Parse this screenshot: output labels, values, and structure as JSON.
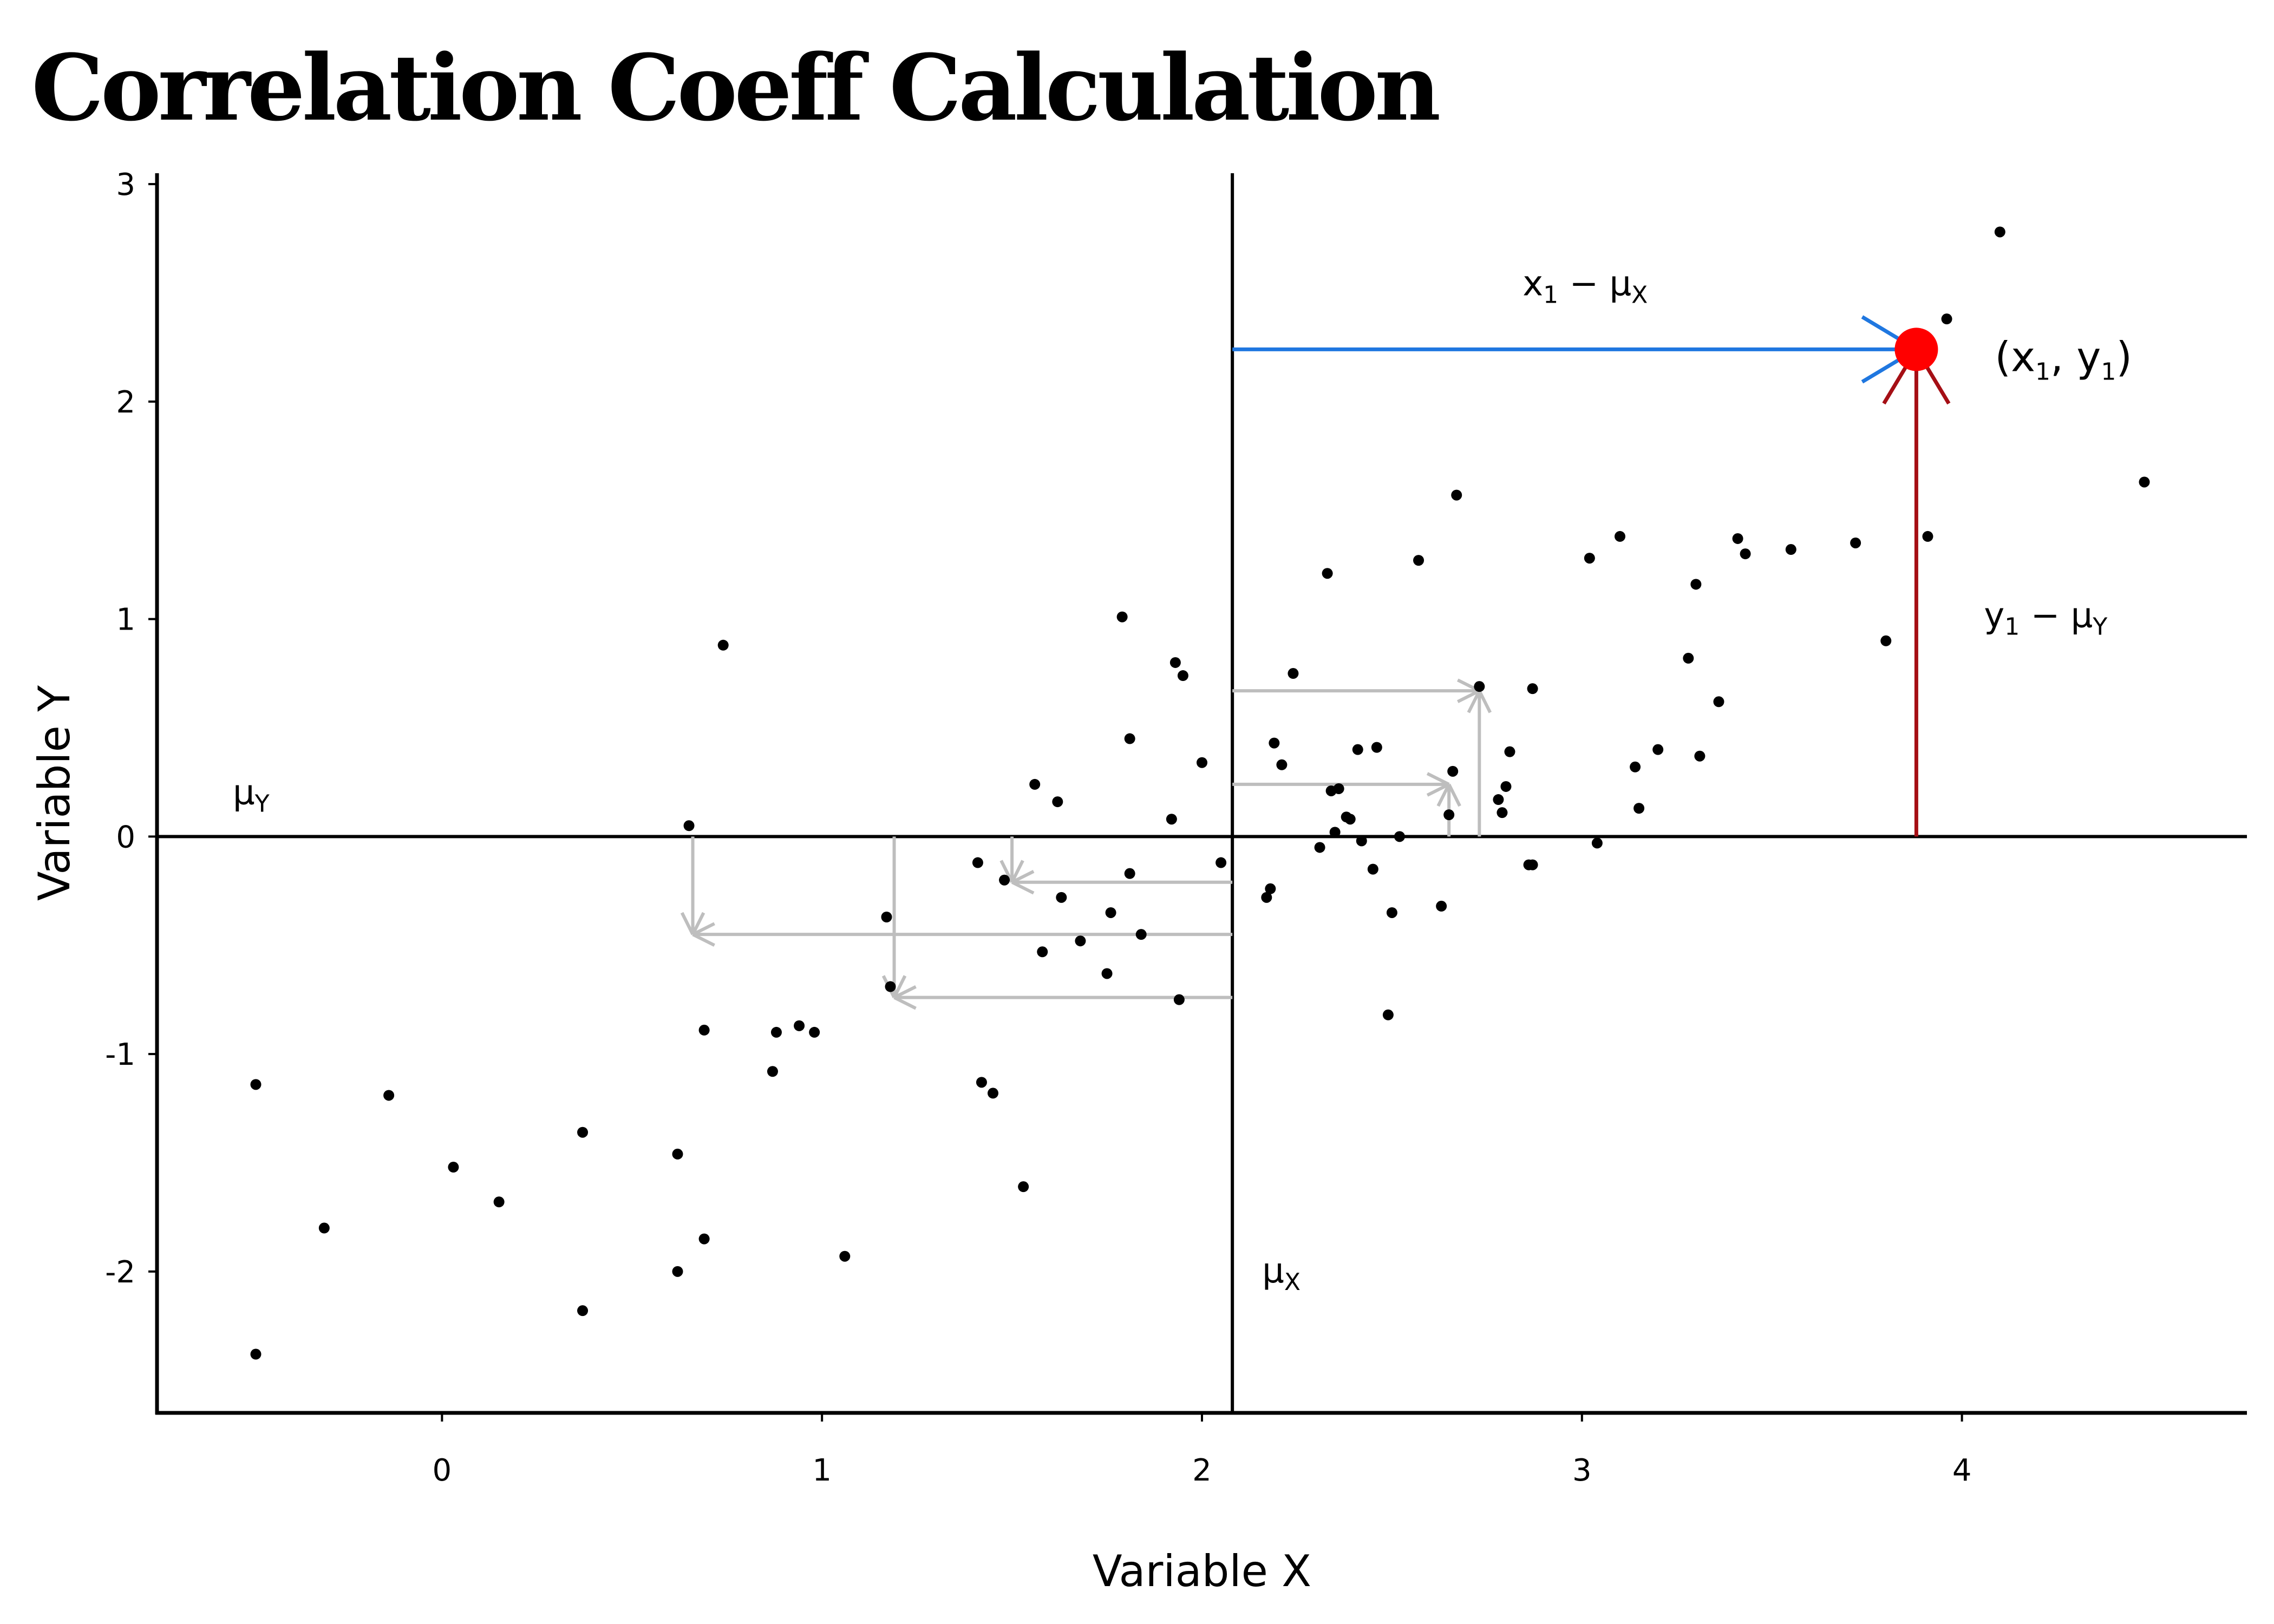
{
  "chart_data": {
    "type": "scatter",
    "title": "Correlation Coeff Calculation",
    "xlabel": "Variable X",
    "ylabel": "Variable Y",
    "xlim": [
      -0.75,
      4.75
    ],
    "ylim": [
      -2.65,
      3.05
    ],
    "x_ticks": [
      0,
      1,
      2,
      3,
      4
    ],
    "x_tick_labels": [
      "0",
      "1",
      "2",
      "3",
      "4"
    ],
    "y_ticks": [
      -2,
      -1,
      0,
      1,
      2,
      3
    ],
    "y_tick_labels": [
      "-2",
      "-1",
      "0",
      "1",
      "2",
      "3"
    ],
    "grid": false,
    "mean_x": 2.08,
    "mean_y": 0.0,
    "mean_x_label": {
      "base": "μ",
      "sub": "X"
    },
    "mean_y_label": {
      "base": "μ",
      "sub": "Y"
    },
    "points": {
      "x": [
        -0.49,
        -0.49,
        -0.31,
        -0.14,
        0.03,
        0.15,
        0.37,
        0.37,
        0.62,
        0.62,
        0.65,
        0.69,
        0.69,
        0.74,
        0.87,
        0.88,
        0.94,
        0.98,
        1.06,
        1.17,
        1.18,
        1.41,
        1.42,
        1.45,
        1.48,
        1.53,
        1.56,
        1.58,
        1.62,
        1.63,
        1.68,
        1.75,
        1.76,
        1.79,
        1.81,
        1.81,
        1.84,
        1.92,
        1.93,
        1.94,
        1.95,
        2.0,
        2.05,
        2.17,
        2.18,
        2.19,
        2.21,
        2.24,
        2.31,
        2.33,
        2.34,
        2.35,
        2.36,
        2.38,
        2.39,
        2.41,
        2.42,
        2.45,
        2.46,
        2.49,
        2.5,
        2.52,
        2.57,
        2.63,
        2.65,
        2.66,
        2.67,
        2.73,
        2.78,
        2.79,
        2.8,
        2.81,
        2.86,
        2.87,
        2.87,
        3.02,
        3.04,
        3.1,
        3.14,
        3.15,
        3.2,
        3.28,
        3.3,
        3.31,
        3.36,
        3.41,
        3.43,
        3.55,
        3.72,
        3.8,
        3.91,
        3.96,
        4.1,
        4.48
      ],
      "y": [
        -1.14,
        -2.38,
        -1.8,
        -1.19,
        -1.52,
        -1.68,
        -1.36,
        -2.18,
        -1.46,
        -2.0,
        0.05,
        -0.89,
        -1.85,
        0.88,
        -1.08,
        -0.9,
        -0.87,
        -0.9,
        -1.93,
        -0.37,
        -0.69,
        -0.12,
        -1.13,
        -1.18,
        -0.2,
        -1.61,
        0.24,
        -0.53,
        0.16,
        -0.28,
        -0.48,
        -0.63,
        -0.35,
        1.01,
        0.45,
        -0.17,
        -0.45,
        0.08,
        0.8,
        -0.75,
        0.74,
        0.34,
        -0.12,
        -0.28,
        -0.24,
        0.43,
        0.33,
        0.75,
        -0.05,
        1.21,
        0.21,
        0.02,
        0.22,
        0.09,
        0.08,
        0.4,
        -0.02,
        -0.15,
        0.41,
        -0.82,
        -0.35,
        0.0,
        1.27,
        -0.32,
        0.1,
        0.3,
        1.57,
        0.69,
        0.17,
        0.11,
        0.23,
        0.39,
        -0.13,
        -0.13,
        0.68,
        1.28,
        -0.03,
        1.38,
        0.32,
        0.13,
        0.4,
        0.82,
        1.16,
        0.37,
        0.62,
        1.37,
        1.3,
        1.32,
        1.35,
        0.9,
        1.38,
        2.38,
        2.78,
        1.63
      ]
    },
    "highlighted_point": {
      "x": 3.88,
      "y": 2.24,
      "color": "#ff0000"
    },
    "highlight_label": {
      "open": "(",
      "x_base": "x",
      "x_sub": "1",
      "sep": ", ",
      "y_base": "y",
      "y_sub": "1",
      "close": ")"
    },
    "deviation_x_label": {
      "base": "x",
      "sub1": "1",
      "mid": " − μ",
      "sub2": "X"
    },
    "deviation_y_label": {
      "base": "y",
      "sub1": "1",
      "mid": " − μ",
      "sub2": "Y"
    },
    "deviation_x_color": "#1f77e0",
    "deviation_y_color": "#a50f15",
    "example_points": [
      {
        "x": 0.66,
        "y": -0.45
      },
      {
        "x": 1.19,
        "y": -0.74
      },
      {
        "x": 1.5,
        "y": -0.21
      },
      {
        "x": 2.65,
        "y": 0.24
      },
      {
        "x": 2.73,
        "y": 0.67
      }
    ],
    "example_color": "#bebebe",
    "point_color": "#000000"
  }
}
